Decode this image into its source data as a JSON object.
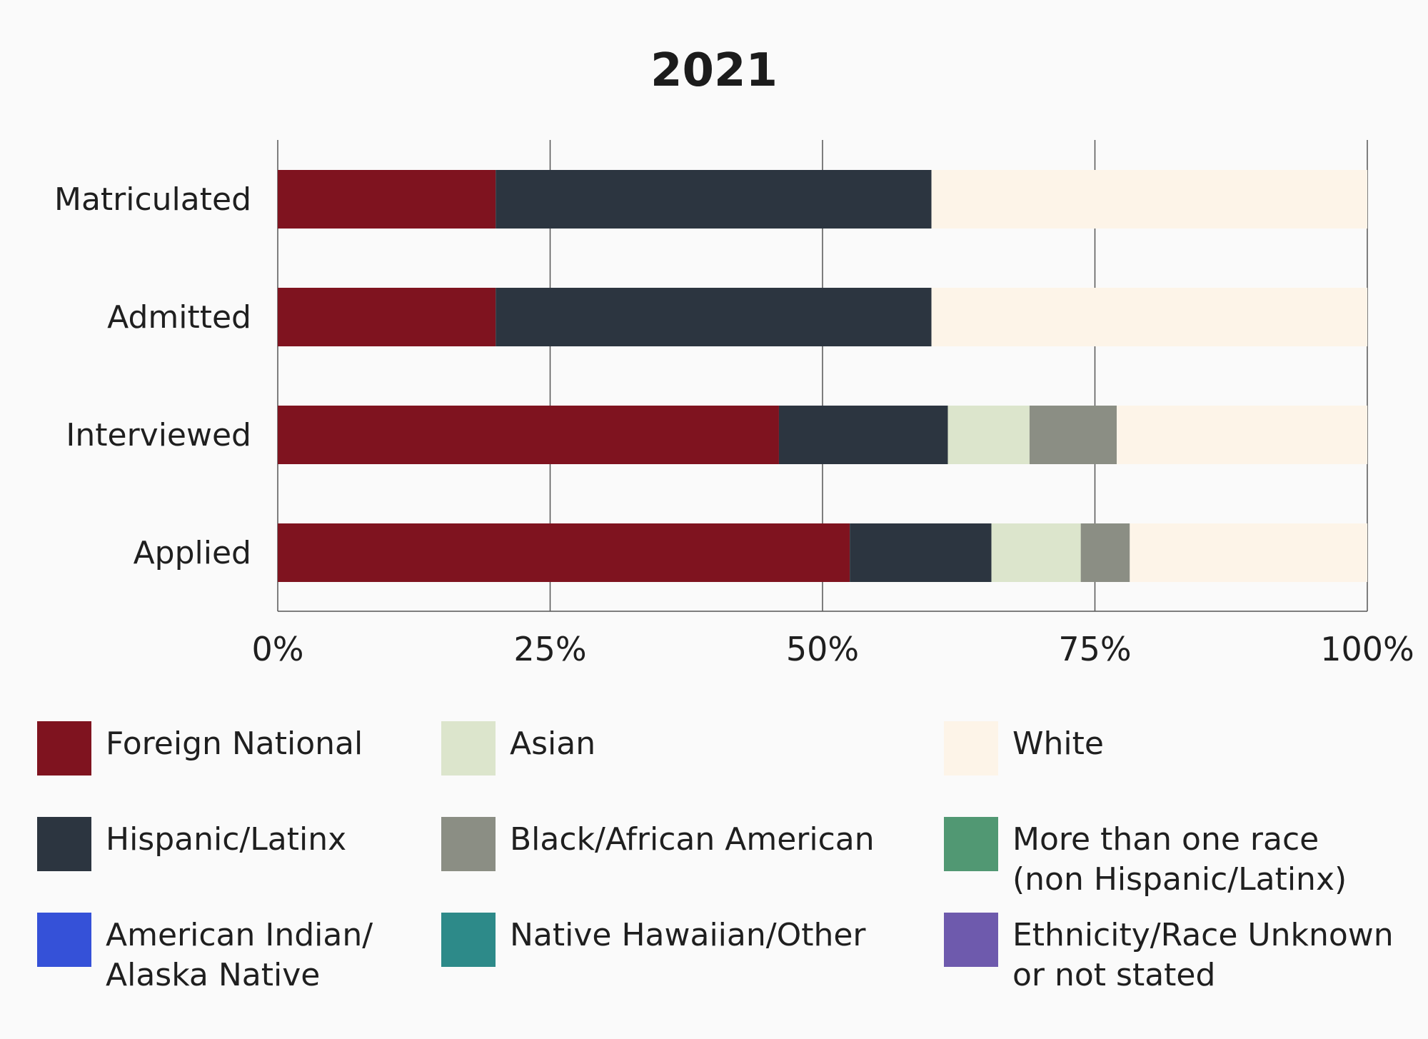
{
  "chart_data": {
    "type": "bar",
    "orientation": "horizontal",
    "stacked": true,
    "normalized": true,
    "title": "2021",
    "categories": [
      "Matriculated",
      "Admitted",
      "Interviewed",
      "Applied"
    ],
    "x_ticks": [
      "0%",
      "25%",
      "50%",
      "75%",
      "100%"
    ],
    "xlim": [
      0,
      100
    ],
    "grid": true,
    "legend_position": "bottom",
    "series": [
      {
        "name": "Foreign National",
        "color": "#7f131f",
        "values": [
          20,
          20,
          46,
          52.5
        ]
      },
      {
        "name": "Hispanic/Latinx",
        "color": "#2c3540",
        "values": [
          40,
          40,
          15.5,
          13
        ]
      },
      {
        "name": "Asian",
        "color": "#dce5cc",
        "values": [
          0,
          0,
          7.5,
          8.2
        ]
      },
      {
        "name": "Black/African American",
        "color": "#8b8e84",
        "values": [
          0,
          0,
          8,
          4.5
        ]
      },
      {
        "name": "White",
        "color": "#fdf4e8",
        "values": [
          40,
          40,
          23,
          21.8
        ]
      },
      {
        "name": "More than one race\n(non Hispanic/Latinx)",
        "color": "#519873",
        "values": [
          0,
          0,
          0,
          0
        ]
      },
      {
        "name": "American Indian/\nAlaska Native",
        "color": "#3551d8",
        "values": [
          0,
          0,
          0,
          0
        ]
      },
      {
        "name": "Native Hawaiian/Other",
        "color": "#2d8a89",
        "values": [
          0,
          0,
          0,
          0
        ]
      },
      {
        "name": "Ethnicity/Race Unknown\nor not stated",
        "color": "#6e5aad",
        "values": [
          0,
          0,
          0,
          0
        ]
      }
    ],
    "legend_order": [
      "Foreign National",
      "Asian",
      "White",
      "Hispanic/Latinx",
      "Black/African American",
      "More than one race\n(non Hispanic/Latinx)",
      "American Indian/\nAlaska Native",
      "Native Hawaiian/Other",
      "Ethnicity/Race Unknown\nor not stated"
    ]
  }
}
